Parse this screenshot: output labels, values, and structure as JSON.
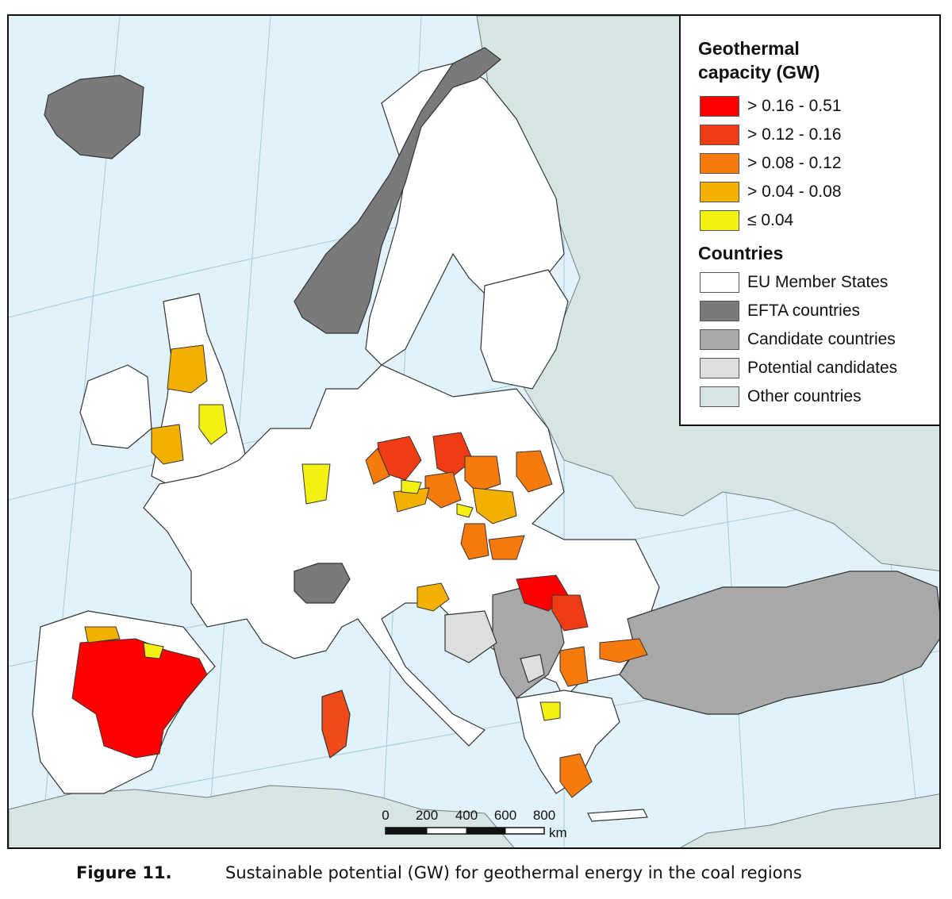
{
  "legend": {
    "title": "Geothermal capacity (GW)",
    "title_line1": "Geothermal",
    "title_line2": "capacity (GW)",
    "classes": [
      {
        "label": "> 0.16 - 0.51",
        "color": "#ff0000"
      },
      {
        "label": "> 0.12 - 0.16",
        "color": "#f03c14"
      },
      {
        "label": "> 0.08 - 0.12",
        "color": "#f77a0c"
      },
      {
        "label": "> 0.04 - 0.08",
        "color": "#f2b100"
      },
      {
        "label": "≤ 0.04",
        "color": "#f5f014"
      }
    ],
    "countries_title": "Countries",
    "countries": [
      {
        "label": "EU Member States",
        "color": "#ffffff"
      },
      {
        "label": "EFTA countries",
        "color": "#7a7a7a"
      },
      {
        "label": "Candidate countries",
        "color": "#a8a8a8"
      },
      {
        "label": "Potential candidates",
        "color": "#dedede"
      },
      {
        "label": "Other countries",
        "color": "#d6e4e4"
      }
    ]
  },
  "scale_bar": {
    "ticks": [
      "0",
      "200",
      "400",
      "600",
      "800"
    ],
    "unit": "km"
  },
  "caption": {
    "number": "Figure 11.",
    "text": "Sustainable potential (GW) for geothermal energy in the coal regions"
  },
  "colors": {
    "sea": "#e2f2fb",
    "eu": "#ffffff",
    "efta": "#7a7a7a",
    "candidate": "#a8a8a8",
    "potential": "#dedede",
    "other": "#d6e4e4",
    "border": "#222222"
  }
}
